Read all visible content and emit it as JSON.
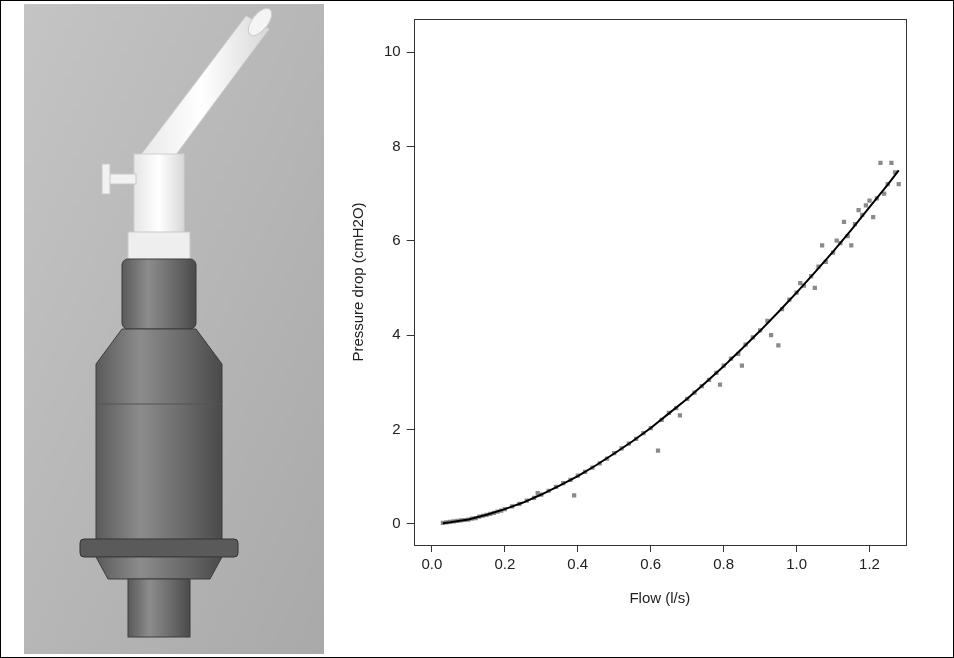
{
  "chart_data": {
    "type": "scatter",
    "x_label": "Flow (l/s)",
    "y_label": "Pressure drop (cmH2O)",
    "xlim": [
      -0.05,
      1.3
    ],
    "ylim": [
      -0.45,
      10.7
    ],
    "xticks": [
      {
        "value": 0,
        "label": "0.0"
      },
      0.2,
      0.4,
      0.6,
      0.8,
      {
        "value": 1,
        "label": "1.0"
      },
      1.2
    ],
    "yticks": [
      0,
      2,
      4,
      6,
      8,
      10
    ],
    "grid": false,
    "series": [
      {
        "type": "scatter",
        "color": "#8a8a8a",
        "marker": "square",
        "x": [
          0.03,
          0.04,
          0.05,
          0.06,
          0.07,
          0.08,
          0.09,
          0.1,
          0.11,
          0.12,
          0.13,
          0.14,
          0.15,
          0.16,
          0.17,
          0.18,
          0.19,
          0.2,
          0.22,
          0.24,
          0.26,
          0.28,
          0.29,
          0.3,
          0.32,
          0.34,
          0.36,
          0.38,
          0.39,
          0.4,
          0.42,
          0.44,
          0.46,
          0.48,
          0.5,
          0.52,
          0.54,
          0.56,
          0.58,
          0.6,
          0.62,
          0.63,
          0.65,
          0.67,
          0.68,
          0.7,
          0.72,
          0.74,
          0.76,
          0.78,
          0.79,
          0.8,
          0.82,
          0.84,
          0.85,
          0.86,
          0.88,
          0.9,
          0.92,
          0.93,
          0.95,
          0.96,
          0.98,
          1.0,
          1.01,
          1.02,
          1.04,
          1.05,
          1.06,
          1.07,
          1.08,
          1.1,
          1.11,
          1.12,
          1.13,
          1.14,
          1.15,
          1.16,
          1.17,
          1.18,
          1.19,
          1.2,
          1.21,
          1.22,
          1.23,
          1.24,
          1.25,
          1.26,
          1.27,
          1.28
        ],
        "values": [
          0.02,
          0.03,
          0.04,
          0.05,
          0.06,
          0.07,
          0.08,
          0.09,
          0.11,
          0.12,
          0.15,
          0.17,
          0.19,
          0.21,
          0.23,
          0.26,
          0.28,
          0.31,
          0.37,
          0.42,
          0.49,
          0.55,
          0.65,
          0.62,
          0.7,
          0.78,
          0.86,
          0.93,
          0.6,
          1.02,
          1.1,
          1.19,
          1.28,
          1.38,
          1.5,
          1.6,
          1.7,
          1.8,
          1.92,
          2.03,
          1.55,
          2.2,
          2.35,
          2.45,
          2.3,
          2.65,
          2.78,
          2.92,
          3.05,
          3.2,
          2.95,
          3.35,
          3.5,
          3.6,
          3.35,
          3.8,
          3.95,
          4.1,
          4.3,
          4.0,
          3.78,
          4.55,
          4.75,
          4.9,
          5.1,
          5.05,
          5.25,
          5.0,
          5.45,
          5.9,
          5.55,
          5.75,
          6.0,
          5.95,
          6.4,
          6.1,
          5.9,
          6.35,
          6.65,
          6.55,
          6.75,
          6.85,
          6.5,
          6.9,
          7.65,
          7.0,
          7.2,
          7.65,
          7.45,
          7.2
        ]
      },
      {
        "type": "line",
        "color": "#000000",
        "line_style": "solid",
        "x": [
          0.03,
          0.05,
          0.1,
          0.15,
          0.2,
          0.25,
          0.3,
          0.35,
          0.4,
          0.45,
          0.5,
          0.55,
          0.6,
          0.65,
          0.7,
          0.75,
          0.8,
          0.85,
          0.9,
          0.95,
          1.0,
          1.05,
          1.1,
          1.15,
          1.2,
          1.25,
          1.28
        ],
        "values": [
          0.01,
          0.03,
          0.09,
          0.19,
          0.31,
          0.45,
          0.62,
          0.81,
          1.01,
          1.24,
          1.49,
          1.75,
          2.03,
          2.34,
          2.65,
          2.99,
          3.34,
          3.71,
          4.09,
          4.49,
          4.9,
          5.33,
          5.77,
          6.23,
          6.71,
          7.19,
          7.49
        ]
      }
    ]
  }
}
